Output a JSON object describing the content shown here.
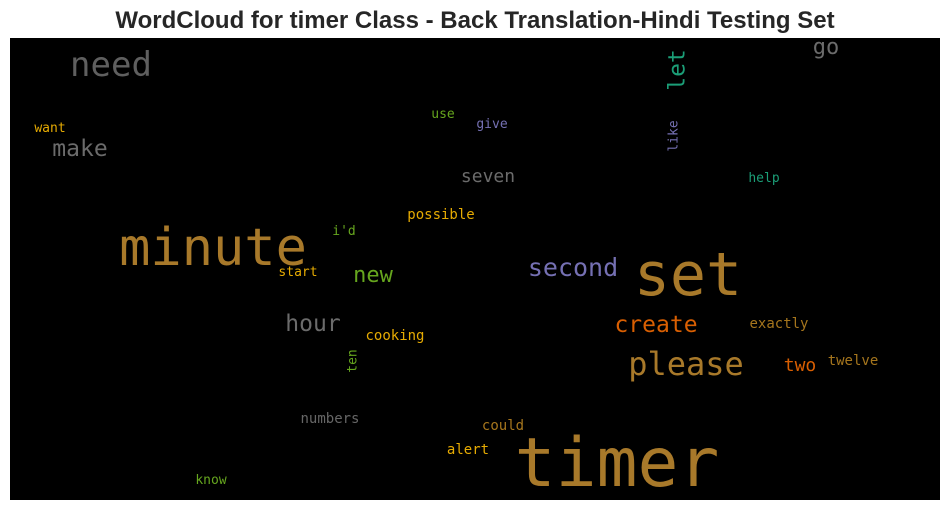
{
  "chart_data": {
    "type": "wordcloud",
    "title": "WordCloud for timer Class - Back Translation-Hindi Testing Set",
    "background": "#000000",
    "words": [
      {
        "text": "timer",
        "weight": 1.0,
        "color": "#a8792a",
        "vertical": false
      },
      {
        "text": "set",
        "weight": 0.88,
        "color": "#a8792a",
        "vertical": false
      },
      {
        "text": "minute",
        "weight": 0.76,
        "color": "#a8792a",
        "vertical": false
      },
      {
        "text": "need",
        "weight": 0.52,
        "color": "#5f5f5f",
        "vertical": false
      },
      {
        "text": "please",
        "weight": 0.5,
        "color": "#a8792a",
        "vertical": false
      },
      {
        "text": "second",
        "weight": 0.42,
        "color": "#7570b3",
        "vertical": false
      },
      {
        "text": "create",
        "weight": 0.4,
        "color": "#d95f02",
        "vertical": false
      },
      {
        "text": "hour",
        "weight": 0.4,
        "color": "#6b6b6b",
        "vertical": false
      },
      {
        "text": "let",
        "weight": 0.38,
        "color": "#1b9e77",
        "vertical": true
      },
      {
        "text": "make",
        "weight": 0.38,
        "color": "#6b6b6b",
        "vertical": false
      },
      {
        "text": "new",
        "weight": 0.36,
        "color": "#66a61e",
        "vertical": false
      },
      {
        "text": "go",
        "weight": 0.34,
        "color": "#6b6b6b",
        "vertical": false
      },
      {
        "text": "two",
        "weight": 0.32,
        "color": "#d95f02",
        "vertical": false
      },
      {
        "text": "seven",
        "weight": 0.3,
        "color": "#6b6b6b",
        "vertical": false
      },
      {
        "text": "cooking",
        "weight": 0.26,
        "color": "#e6ab02",
        "vertical": false
      },
      {
        "text": "exactly",
        "weight": 0.25,
        "color": "#a6761d",
        "vertical": false
      },
      {
        "text": "twelve",
        "weight": 0.25,
        "color": "#a6761d",
        "vertical": false
      },
      {
        "text": "could",
        "weight": 0.25,
        "color": "#a6761d",
        "vertical": false
      },
      {
        "text": "numbers",
        "weight": 0.25,
        "color": "#666666",
        "vertical": false
      },
      {
        "text": "alert",
        "weight": 0.25,
        "color": "#e6ab02",
        "vertical": false
      },
      {
        "text": "possible",
        "weight": 0.25,
        "color": "#e6ab02",
        "vertical": false
      },
      {
        "text": "start",
        "weight": 0.24,
        "color": "#e6ab02",
        "vertical": false
      },
      {
        "text": "help",
        "weight": 0.24,
        "color": "#1b9e77",
        "vertical": false
      },
      {
        "text": "ten",
        "weight": 0.24,
        "color": "#66a61e",
        "vertical": true
      },
      {
        "text": "like",
        "weight": 0.24,
        "color": "#7570b3",
        "vertical": true
      },
      {
        "text": "know",
        "weight": 0.24,
        "color": "#66a61e",
        "vertical": false
      },
      {
        "text": "want",
        "weight": 0.24,
        "color": "#e6ab02",
        "vertical": false
      },
      {
        "text": "give",
        "weight": 0.24,
        "color": "#7570b3",
        "vertical": false
      },
      {
        "text": "use",
        "weight": 0.24,
        "color": "#66a61e",
        "vertical": false
      },
      {
        "text": "i'd",
        "weight": 0.24,
        "color": "#66a61e",
        "vertical": false
      }
    ]
  }
}
